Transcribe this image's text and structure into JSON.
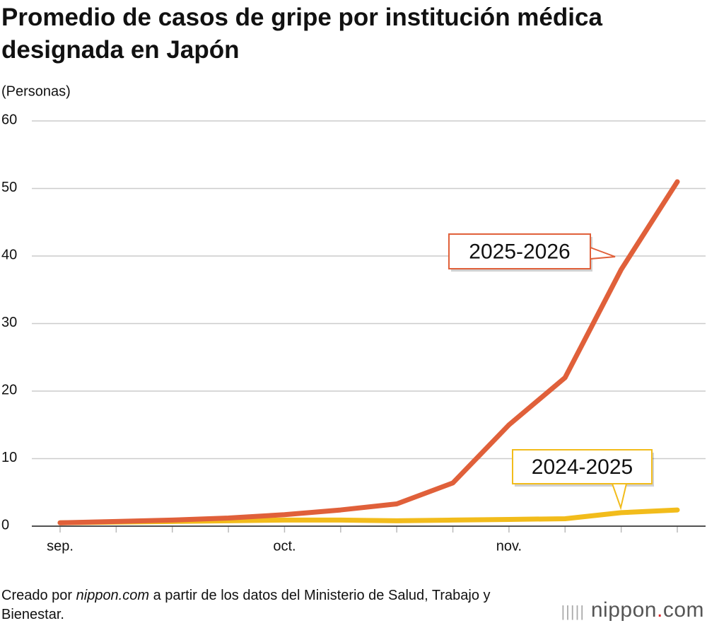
{
  "chart_data": {
    "type": "line",
    "title": "Promedio de casos de gripe por institución médica designada en Japón",
    "y_label": "(Personas)",
    "categories": [
      "sep.",
      null,
      null,
      null,
      "oct.",
      null,
      null,
      null,
      "nov.",
      null,
      null,
      null
    ],
    "series": [
      {
        "name": "2025-2026",
        "color": "#e0603a",
        "values": [
          0.5,
          0.7,
          0.9,
          1.2,
          1.7,
          2.4,
          3.3,
          6.4,
          15,
          22,
          38,
          51
        ]
      },
      {
        "name": "2024-2025",
        "color": "#f2bc1b",
        "values": [
          0.5,
          0.6,
          0.7,
          0.8,
          0.9,
          0.9,
          0.8,
          0.9,
          1.0,
          1.1,
          2.0,
          2.4
        ]
      }
    ],
    "ylim": [
      0,
      60
    ],
    "yticks": [
      0,
      10,
      20,
      30,
      40,
      50,
      60
    ],
    "grid": true,
    "source": {
      "prefix": "Creado por",
      "italic": "nippon.com",
      "suffix": "a partir de los datos del Ministerio de Salud, Trabajo y Bienestar."
    },
    "logo": {
      "name": "nippon",
      "dot": ".",
      "tld": "com"
    }
  }
}
